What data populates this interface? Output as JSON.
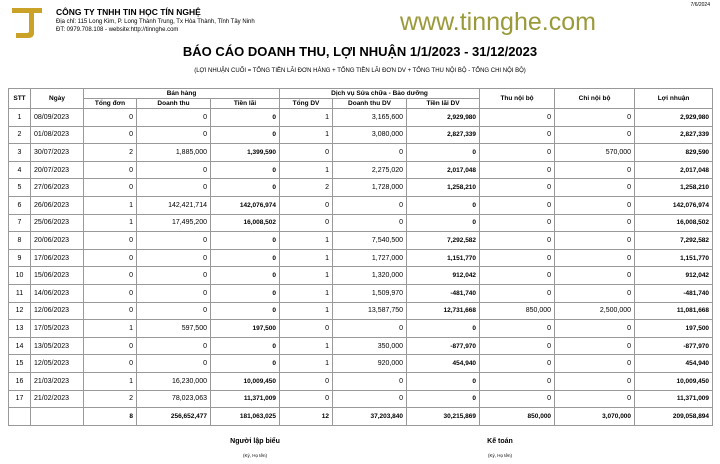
{
  "header": {
    "company": "CÔNG TY TNHH TIN HỌC TÍN NGHỆ",
    "address": "Địa chỉ: 115 Long Kim, P. Long Thành Trung, Tx Hòa Thành, Tỉnh Tây Ninh",
    "contact": "ĐT: 0979.708.108 - website:http://tinnghe.com",
    "print_date": "7/6/2024",
    "logo_color": "#c9a227"
  },
  "report": {
    "title": "BÁO CÁO DOANH THU, LỢI NHUẬN 1/1/2023 - 31/12/2023",
    "formula": "(LỢI NHUẬN CUỐI = TỔNG TIỀN LÃI ĐƠN HÀNG + TỔNG TIỀN LÃI ĐƠN DV + TỔNG THU NỘI BỘ - TỔNG CHI NỘI BỘ)"
  },
  "watermark": "www.tinnghe.com",
  "table": {
    "headers": {
      "stt": "STT",
      "date": "Ngày",
      "sales": "Bán hàng",
      "service": "Dịch vụ Sửa chữa - Bảo dưỡng",
      "internal_in": "Thu nội bộ",
      "internal_out": "Chi nội bộ",
      "profit": "Lợi nhuận",
      "orders": "Tổng đơn",
      "revenue": "Doanh thu",
      "interest": "Tiền lãi",
      "svc_count": "Tổng DV",
      "svc_revenue": "Doanh thu DV",
      "svc_interest": "Tiền lãi DV"
    },
    "rows": [
      [
        "1",
        "08/09/2023",
        "0",
        "0",
        "0",
        "1",
        "3,165,600",
        "2,929,980",
        "0",
        "0",
        "2,929,980"
      ],
      [
        "2",
        "01/08/2023",
        "0",
        "0",
        "0",
        "1",
        "3,080,000",
        "2,827,339",
        "0",
        "0",
        "2,827,339"
      ],
      [
        "3",
        "30/07/2023",
        "2",
        "1,885,000",
        "1,399,590",
        "0",
        "0",
        "0",
        "0",
        "570,000",
        "829,590"
      ],
      [
        "4",
        "20/07/2023",
        "0",
        "0",
        "0",
        "1",
        "2,275,020",
        "2,017,048",
        "0",
        "0",
        "2,017,048"
      ],
      [
        "5",
        "27/06/2023",
        "0",
        "0",
        "0",
        "2",
        "1,728,000",
        "1,258,210",
        "0",
        "0",
        "1,258,210"
      ],
      [
        "6",
        "26/06/2023",
        "1",
        "142,421,714",
        "142,076,974",
        "0",
        "0",
        "0",
        "0",
        "0",
        "142,076,974"
      ],
      [
        "7",
        "25/06/2023",
        "1",
        "17,495,200",
        "16,008,502",
        "0",
        "0",
        "0",
        "0",
        "0",
        "16,008,502"
      ],
      [
        "8",
        "20/06/2023",
        "0",
        "0",
        "0",
        "1",
        "7,540,500",
        "7,292,582",
        "0",
        "0",
        "7,292,582"
      ],
      [
        "9",
        "17/06/2023",
        "0",
        "0",
        "0",
        "1",
        "1,727,000",
        "1,151,770",
        "0",
        "0",
        "1,151,770"
      ],
      [
        "10",
        "15/06/2023",
        "0",
        "0",
        "0",
        "1",
        "1,320,000",
        "912,042",
        "0",
        "0",
        "912,042"
      ],
      [
        "11",
        "14/06/2023",
        "0",
        "0",
        "0",
        "1",
        "1,509,970",
        "-481,740",
        "0",
        "0",
        "-481,740"
      ],
      [
        "12",
        "12/06/2023",
        "0",
        "0",
        "0",
        "1",
        "13,587,750",
        "12,731,668",
        "850,000",
        "2,500,000",
        "11,081,668"
      ],
      [
        "13",
        "17/05/2023",
        "1",
        "597,500",
        "197,500",
        "0",
        "0",
        "0",
        "0",
        "0",
        "197,500"
      ],
      [
        "14",
        "13/05/2023",
        "0",
        "0",
        "0",
        "1",
        "350,000",
        "-877,970",
        "0",
        "0",
        "-877,970"
      ],
      [
        "15",
        "12/05/2023",
        "0",
        "0",
        "0",
        "1",
        "920,000",
        "454,940",
        "0",
        "0",
        "454,940"
      ],
      [
        "16",
        "21/03/2023",
        "1",
        "16,230,000",
        "10,009,450",
        "0",
        "0",
        "0",
        "0",
        "0",
        "10,009,450"
      ],
      [
        "17",
        "21/02/2023",
        "2",
        "78,023,063",
        "11,371,009",
        "0",
        "0",
        "0",
        "0",
        "0",
        "11,371,009"
      ]
    ],
    "totals": [
      "",
      "",
      "8",
      "256,652,477",
      "181,063,025",
      "12",
      "37,203,840",
      "30,215,869",
      "850,000",
      "3,070,000",
      "209,058,894"
    ]
  },
  "signatures": [
    {
      "title": "Người lập biểu",
      "note": "(Ký, Họ tên)"
    },
    {
      "title": "Kế toán",
      "note": "(Ký, Họ tên)"
    }
  ]
}
